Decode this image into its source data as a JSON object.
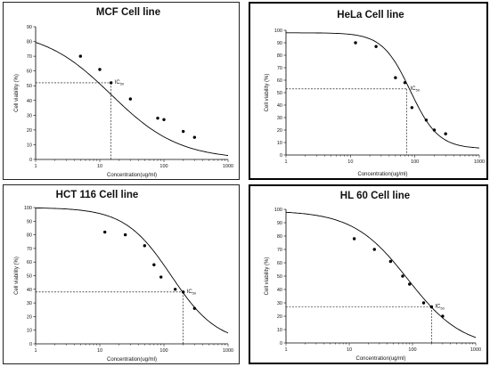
{
  "chart_data": [
    {
      "type": "scatter",
      "title": "MCF Cell line",
      "xlabel": "Concentration(ug/ml)",
      "ylabel": "Cell viability (%)",
      "xscale": "log",
      "xlim": [
        1,
        1000
      ],
      "ylim": [
        0,
        90
      ],
      "xticks": [
        1,
        10,
        100,
        1000
      ],
      "yticks": [
        0,
        10,
        20,
        30,
        40,
        50,
        60,
        70,
        80,
        90
      ],
      "points": {
        "x": [
          5,
          10,
          15,
          30,
          80,
          100,
          200,
          300
        ],
        "y": [
          70,
          61,
          52,
          41,
          28,
          27,
          19,
          15
        ]
      },
      "fit_curve": {
        "top": 88,
        "bottom": 0,
        "ic50": 15,
        "hill": 0.82
      },
      "ic50_label": "IC",
      "ic50_sub": "50",
      "ic50": {
        "x": 15,
        "y": 52
      },
      "grid": false,
      "legend": "none"
    },
    {
      "type": "scatter",
      "title": "HeLa Cell line",
      "xlabel": "Concentration(ug/ml)",
      "ylabel": "Cell viability (%)",
      "xscale": "log",
      "xlim": [
        1,
        1000
      ],
      "ylim": [
        0,
        100
      ],
      "xticks": [
        1,
        10,
        100,
        1000
      ],
      "yticks": [
        0,
        10,
        20,
        30,
        40,
        50,
        60,
        70,
        80,
        90,
        100
      ],
      "points": {
        "x": [
          12,
          25,
          50,
          70,
          90,
          150,
          200,
          300
        ],
        "y": [
          90,
          87,
          62,
          58,
          38,
          28,
          20,
          17
        ]
      },
      "fit_curve": {
        "top": 98,
        "bottom": 5,
        "ic50": 85,
        "hill": 2.0
      },
      "ic50_label": "IC",
      "ic50_sub": "50",
      "ic50": {
        "x": 75,
        "y": 53
      },
      "grid": false,
      "legend": "none"
    },
    {
      "type": "scatter",
      "title": "HCT 116 Cell line",
      "xlabel": "Concentration(ug/ml)",
      "ylabel": "Cell viability (%)",
      "xscale": "log",
      "xlim": [
        1,
        1000
      ],
      "ylim": [
        0,
        100
      ],
      "xticks": [
        1,
        10,
        100,
        1000
      ],
      "yticks": [
        0,
        10,
        20,
        30,
        40,
        50,
        60,
        70,
        80,
        90,
        100
      ],
      "points": {
        "x": [
          12,
          25,
          50,
          70,
          90,
          150,
          200,
          300
        ],
        "y": [
          82,
          80,
          72,
          58,
          49,
          40,
          38,
          26
        ]
      },
      "fit_curve": {
        "top": 100,
        "bottom": 0,
        "ic50": 130,
        "hill": 1.2
      },
      "ic50_label": "IC",
      "ic50_sub": "50",
      "ic50": {
        "x": 200,
        "y": 38
      },
      "grid": false,
      "legend": "none"
    },
    {
      "type": "scatter",
      "title": "HL 60 Cell line",
      "xlabel": "Concentration(ug/ml)",
      "ylabel": "Cell viability (%)",
      "xscale": "log",
      "xlim": [
        1,
        1000
      ],
      "ylim": [
        0,
        100
      ],
      "xticks": [
        1,
        10,
        100,
        1000
      ],
      "yticks": [
        0,
        10,
        20,
        30,
        40,
        50,
        60,
        70,
        80,
        90,
        100
      ],
      "points": {
        "x": [
          12,
          25,
          45,
          70,
          90,
          150,
          200,
          300
        ],
        "y": [
          78,
          70,
          61,
          50,
          44,
          30,
          27,
          20
        ]
      },
      "fit_curve": {
        "top": 99,
        "bottom": -4,
        "ic50": 85,
        "hill": 1.0
      },
      "ic50_label": "IC",
      "ic50_sub": "50",
      "ic50": {
        "x": 200,
        "y": 27
      },
      "grid": false,
      "legend": "none"
    }
  ]
}
